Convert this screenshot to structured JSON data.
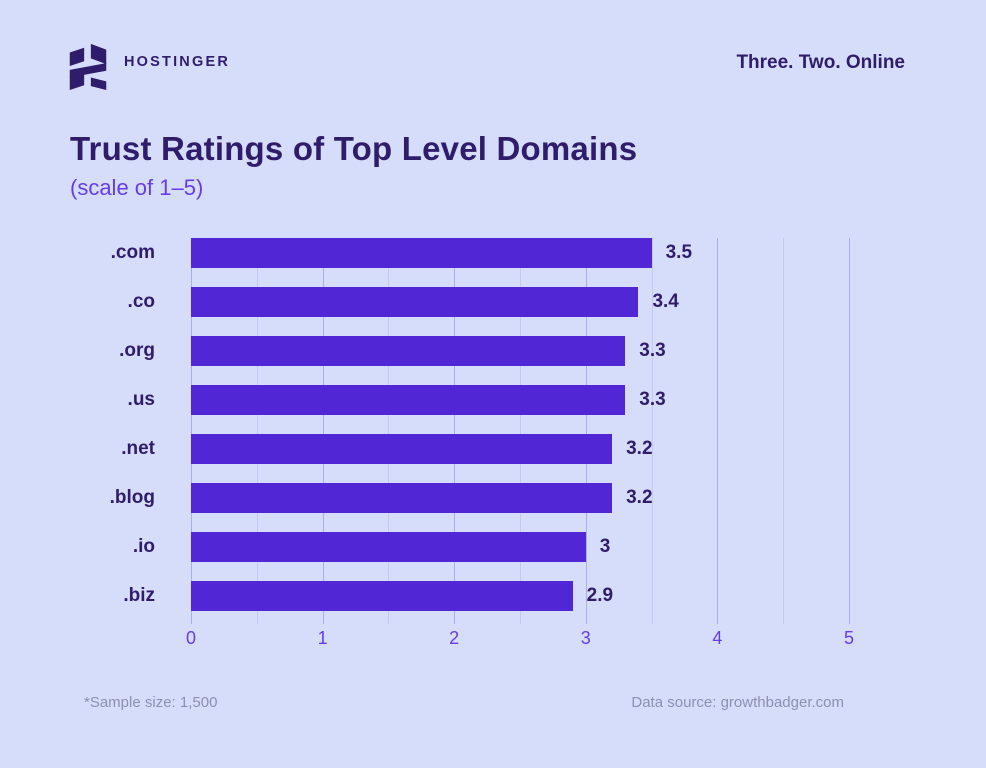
{
  "header": {
    "brand": "HOSTINGER",
    "tagline": "Three. Two. Online"
  },
  "title": "Trust Ratings of Top Level Domains",
  "subtitle": "(scale of 1–5)",
  "chart_data": {
    "type": "bar",
    "orientation": "horizontal",
    "title": "Trust Ratings of Top Level Domains",
    "scale_note": "(scale of 1–5)",
    "categories": [
      ".com",
      ".co",
      ".org",
      ".us",
      ".net",
      ".blog",
      ".io",
      ".biz"
    ],
    "values": [
      3.5,
      3.4,
      3.3,
      3.3,
      3.2,
      3.2,
      3,
      2.9
    ],
    "value_labels": [
      "3.5",
      "3.4",
      "3.3",
      "3.3",
      "3.2",
      "3.2",
      "3",
      "2.9"
    ],
    "xlim": [
      0,
      5
    ],
    "x_ticks": [
      0,
      1,
      2,
      3,
      4,
      5
    ],
    "minor_grid_step": 0.5,
    "grid": true,
    "legend": false
  },
  "footer": {
    "sample_note": "*Sample size: 1,500",
    "source_note": "Data source: growthbadger.com"
  },
  "colors": {
    "background": "#d5ddfb",
    "bar": "#5026d5",
    "heading": "#2f1c6a",
    "accent_purple": "#673de6",
    "grid_major": "#a9afe8",
    "grid_minor": "#c3c8f5",
    "muted_text": "#8d90b2"
  }
}
